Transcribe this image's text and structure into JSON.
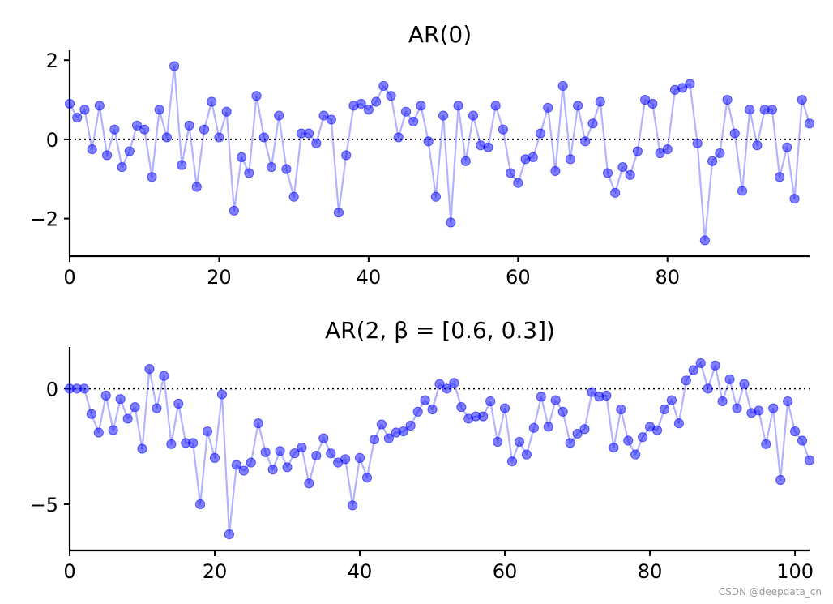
{
  "chart_data": [
    {
      "type": "line",
      "title": "AR(0)",
      "x": [
        0,
        1,
        2,
        3,
        4,
        5,
        6,
        7,
        8,
        9,
        10,
        11,
        12,
        13,
        14,
        15,
        16,
        17,
        18,
        19,
        20,
        21,
        22,
        23,
        24,
        25,
        26,
        27,
        28,
        29,
        30,
        31,
        32,
        33,
        34,
        35,
        36,
        37,
        38,
        39,
        40,
        41,
        42,
        43,
        44,
        45,
        46,
        47,
        48,
        49,
        50,
        51,
        52,
        53,
        54,
        55,
        56,
        57,
        58,
        59,
        60,
        61,
        62,
        63,
        64,
        65,
        66,
        67,
        68,
        69,
        70,
        71,
        72,
        73,
        74,
        75,
        76,
        77,
        78,
        79,
        80,
        81,
        82,
        83,
        84,
        85,
        86,
        87,
        88,
        89,
        90,
        91,
        92,
        93,
        94,
        95,
        96,
        97,
        98,
        99
      ],
      "values": [
        0.9,
        0.55,
        0.75,
        -0.25,
        0.85,
        -0.4,
        0.25,
        -0.7,
        -0.3,
        0.35,
        0.25,
        -0.95,
        0.75,
        0.05,
        1.85,
        -0.65,
        0.35,
        -1.2,
        0.25,
        0.95,
        0.05,
        0.7,
        -1.8,
        -0.45,
        -0.85,
        1.1,
        0.05,
        -0.7,
        0.6,
        -0.75,
        -1.45,
        0.15,
        0.15,
        -0.1,
        0.6,
        0.5,
        -1.85,
        -0.4,
        0.85,
        0.9,
        0.75,
        0.95,
        1.35,
        1.1,
        0.05,
        0.7,
        0.45,
        0.85,
        -0.05,
        -1.45,
        0.6,
        -2.1,
        0.85,
        -0.55,
        0.6,
        -0.15,
        -0.2,
        0.85,
        0.25,
        -0.85,
        -1.1,
        -0.5,
        -0.45,
        0.15,
        0.8,
        -0.8,
        1.35,
        -0.5,
        0.85,
        -0.05,
        0.4,
        0.95,
        -0.85,
        -1.35,
        -0.7,
        -0.9,
        -0.3,
        1.0,
        0.9,
        -0.35,
        -0.25,
        1.25,
        1.3,
        1.4,
        -0.1,
        -2.55,
        -0.55,
        -0.35,
        1.0,
        0.15,
        -1.3,
        0.75,
        -0.15,
        0.75,
        0.75,
        -0.95,
        -0.2,
        -1.5,
        1.0,
        0.4
      ],
      "xlim": [
        0,
        99
      ],
      "ylim": [
        -2.95,
        2.25
      ],
      "xticks": [
        0,
        20,
        40,
        60,
        80
      ],
      "xtick_labels": [
        "0",
        "20",
        "40",
        "60",
        "80"
      ],
      "yticks": [
        -2,
        0,
        2
      ],
      "ytick_labels": [
        "−2",
        "0",
        "2"
      ],
      "zero_line": true,
      "grid": false,
      "color": "#0000ff"
    },
    {
      "type": "line",
      "title": "AR(2, β = [0.6, 0.3])",
      "x": [
        0,
        1,
        2,
        3,
        4,
        5,
        6,
        7,
        8,
        9,
        10,
        11,
        12,
        13,
        14,
        15,
        16,
        17,
        18,
        19,
        20,
        21,
        22,
        23,
        24,
        25,
        26,
        27,
        28,
        29,
        30,
        31,
        32,
        33,
        34,
        35,
        36,
        37,
        38,
        39,
        40,
        41,
        42,
        43,
        44,
        45,
        46,
        47,
        48,
        49,
        50,
        51,
        52,
        53,
        54,
        55,
        56,
        57,
        58,
        59,
        60,
        61,
        62,
        63,
        64,
        65,
        66,
        67,
        68,
        69,
        70,
        71,
        72,
        73,
        74,
        75,
        76,
        77,
        78,
        79,
        80,
        81,
        82,
        83,
        84,
        85,
        86,
        87,
        88,
        89,
        90,
        91,
        92,
        93,
        94,
        95,
        96,
        97,
        98,
        99,
        100,
        101,
        102
      ],
      "values": [
        0,
        0,
        0,
        -1.1,
        -1.9,
        -0.3,
        -1.8,
        -0.45,
        -1.3,
        -0.8,
        -2.6,
        0.85,
        -0.85,
        0.55,
        -2.4,
        -0.65,
        -2.35,
        -2.35,
        -5.0,
        -1.85,
        -3.0,
        -0.25,
        -6.3,
        -3.3,
        -3.55,
        -3.2,
        -1.5,
        -2.75,
        -3.5,
        -2.7,
        -3.4,
        -2.8,
        -2.55,
        -4.1,
        -2.9,
        -2.15,
        -2.8,
        -3.2,
        -3.05,
        -5.05,
        -3.0,
        -3.85,
        -2.2,
        -1.55,
        -2.15,
        -1.9,
        -1.85,
        -1.6,
        -1.0,
        -0.5,
        -0.9,
        0.2,
        0.0,
        0.25,
        -0.8,
        -1.3,
        -1.2,
        -1.2,
        -0.55,
        -2.3,
        -0.85,
        -3.15,
        -2.3,
        -2.85,
        -1.7,
        -0.35,
        -1.65,
        -0.5,
        -1.0,
        -2.35,
        -1.95,
        -1.75,
        -0.15,
        -0.35,
        -0.3,
        -2.55,
        -0.9,
        -2.25,
        -2.85,
        -2.1,
        -1.65,
        -1.8,
        -0.9,
        -0.5,
        -1.5,
        0.35,
        0.8,
        1.1,
        0.0,
        1.0,
        -0.55,
        0.4,
        -0.85,
        0.2,
        -1.05,
        -0.95,
        -2.4,
        -0.85,
        -3.95,
        -0.55,
        -1.85,
        -2.25,
        -3.1
      ],
      "xlim": [
        0,
        102
      ],
      "ylim": [
        -7.0,
        1.8
      ],
      "xticks": [
        0,
        20,
        40,
        60,
        80,
        100
      ],
      "xtick_labels": [
        "0",
        "20",
        "40",
        "60",
        "80",
        "100"
      ],
      "yticks": [
        -5,
        0
      ],
      "ytick_labels": [
        "−5",
        "0"
      ],
      "zero_line": true,
      "grid": false,
      "color": "#0000ff"
    }
  ],
  "watermark": "CSDN @deepdata_cn"
}
